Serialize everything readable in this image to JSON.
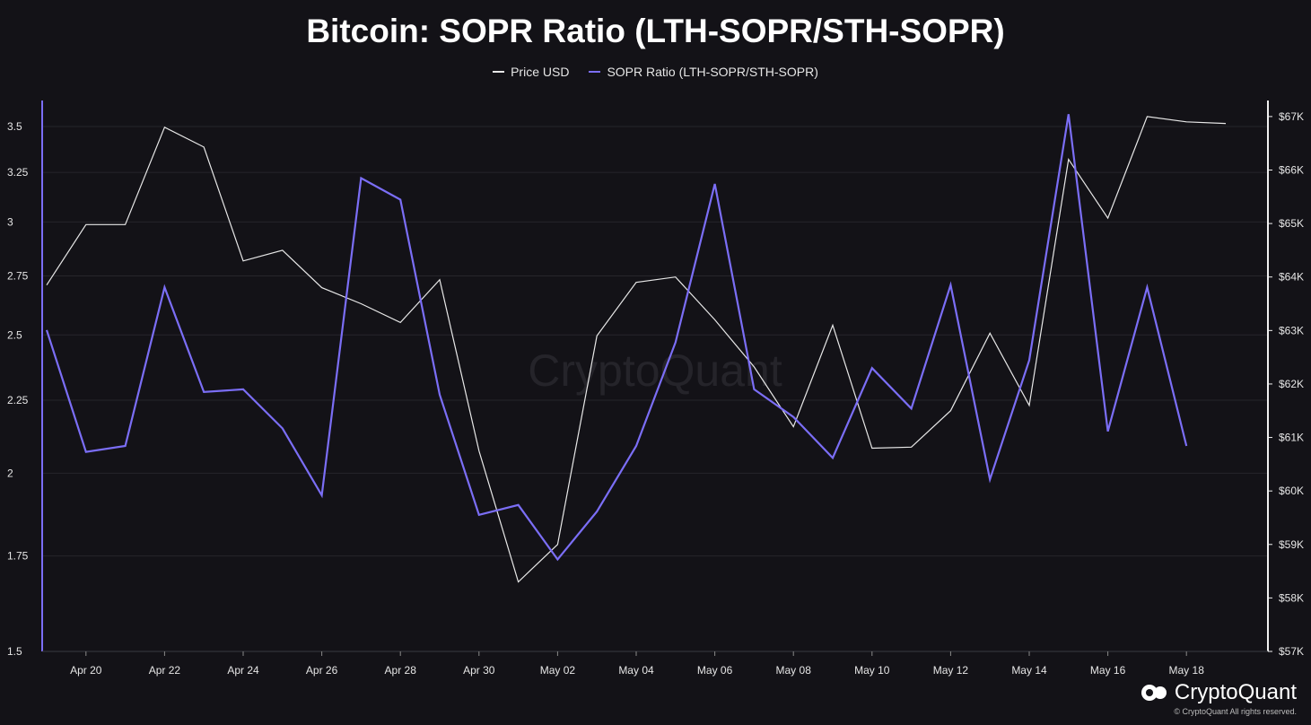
{
  "chart_data": {
    "type": "line",
    "title": "Bitcoin: SOPR Ratio (LTH-SOPR/STH-SOPR)",
    "x": [
      "2024-04-19",
      "2024-04-20",
      "2024-04-21",
      "2024-04-22",
      "2024-04-23",
      "2024-04-24",
      "2024-04-25",
      "2024-04-26",
      "2024-04-27",
      "2024-04-28",
      "2024-04-29",
      "2024-04-30",
      "2024-05-01",
      "2024-05-02",
      "2024-05-03",
      "2024-05-04",
      "2024-05-05",
      "2024-05-06",
      "2024-05-07",
      "2024-05-08",
      "2024-05-09",
      "2024-05-10",
      "2024-05-11",
      "2024-05-12",
      "2024-05-13",
      "2024-05-14",
      "2024-05-15",
      "2024-05-16",
      "2024-05-17",
      "2024-05-18",
      "2024-05-19"
    ],
    "x_tick_labels": [
      "Apr 20",
      "Apr 22",
      "Apr 24",
      "Apr 26",
      "Apr 28",
      "Apr 30",
      "May 02",
      "May 04",
      "May 06",
      "May 08",
      "May 10",
      "May 12",
      "May 14",
      "May 16",
      "May 18"
    ],
    "series": [
      {
        "name": "Price USD",
        "axis": "right",
        "color": "#e8e8e8",
        "values": [
          63850,
          64980,
          64980,
          66800,
          66430,
          64300,
          64500,
          63800,
          63500,
          63150,
          63950,
          60750,
          58300,
          59000,
          62900,
          63900,
          64000,
          63200,
          62320,
          61200,
          63100,
          60800,
          60820,
          61500,
          62950,
          61600,
          66200,
          65100,
          67000,
          66900,
          66870
        ]
      },
      {
        "name": "SOPR Ratio (LTH-SOPR/STH-SOPR)",
        "axis": "left",
        "color": "#7b6ef6",
        "values": [
          2.52,
          2.07,
          2.09,
          2.7,
          2.28,
          2.29,
          2.15,
          1.93,
          3.22,
          3.11,
          2.27,
          1.87,
          1.9,
          1.74,
          1.88,
          2.09,
          2.47,
          3.19,
          2.29,
          2.19,
          2.05,
          2.37,
          2.22,
          2.71,
          1.98,
          2.4,
          3.57,
          2.14,
          2.7,
          2.09,
          null
        ]
      }
    ],
    "y_left": {
      "ylim": [
        1.5,
        3.65
      ],
      "ticks": [
        1.5,
        1.75,
        2,
        2.25,
        2.5,
        2.75,
        3,
        3.25,
        3.5
      ],
      "tick_labels": [
        "1.5",
        "1.75",
        "2",
        "2.25",
        "2.5",
        "2.75",
        "3",
        "3.25",
        "3.5"
      ],
      "scale": "log"
    },
    "y_right": {
      "ylim": [
        57000,
        67300
      ],
      "ticks": [
        57000,
        58000,
        59000,
        60000,
        61000,
        62000,
        63000,
        64000,
        65000,
        66000,
        67000
      ],
      "tick_labels": [
        "$57K",
        "$58K",
        "$59K",
        "$60K",
        "$61K",
        "$62K",
        "$63K",
        "$64K",
        "$65K",
        "$66K",
        "$67K"
      ]
    },
    "legend_position": "top-center",
    "grid": true,
    "watermark": "CryptoQuant"
  },
  "brand": {
    "name": "CryptoQuant",
    "copyright": "© CryptoQuant All rights reserved."
  },
  "colors": {
    "background": "#131217",
    "grid": "#26252b",
    "sopr": "#7b6ef6",
    "price": "#e8e8e8"
  }
}
